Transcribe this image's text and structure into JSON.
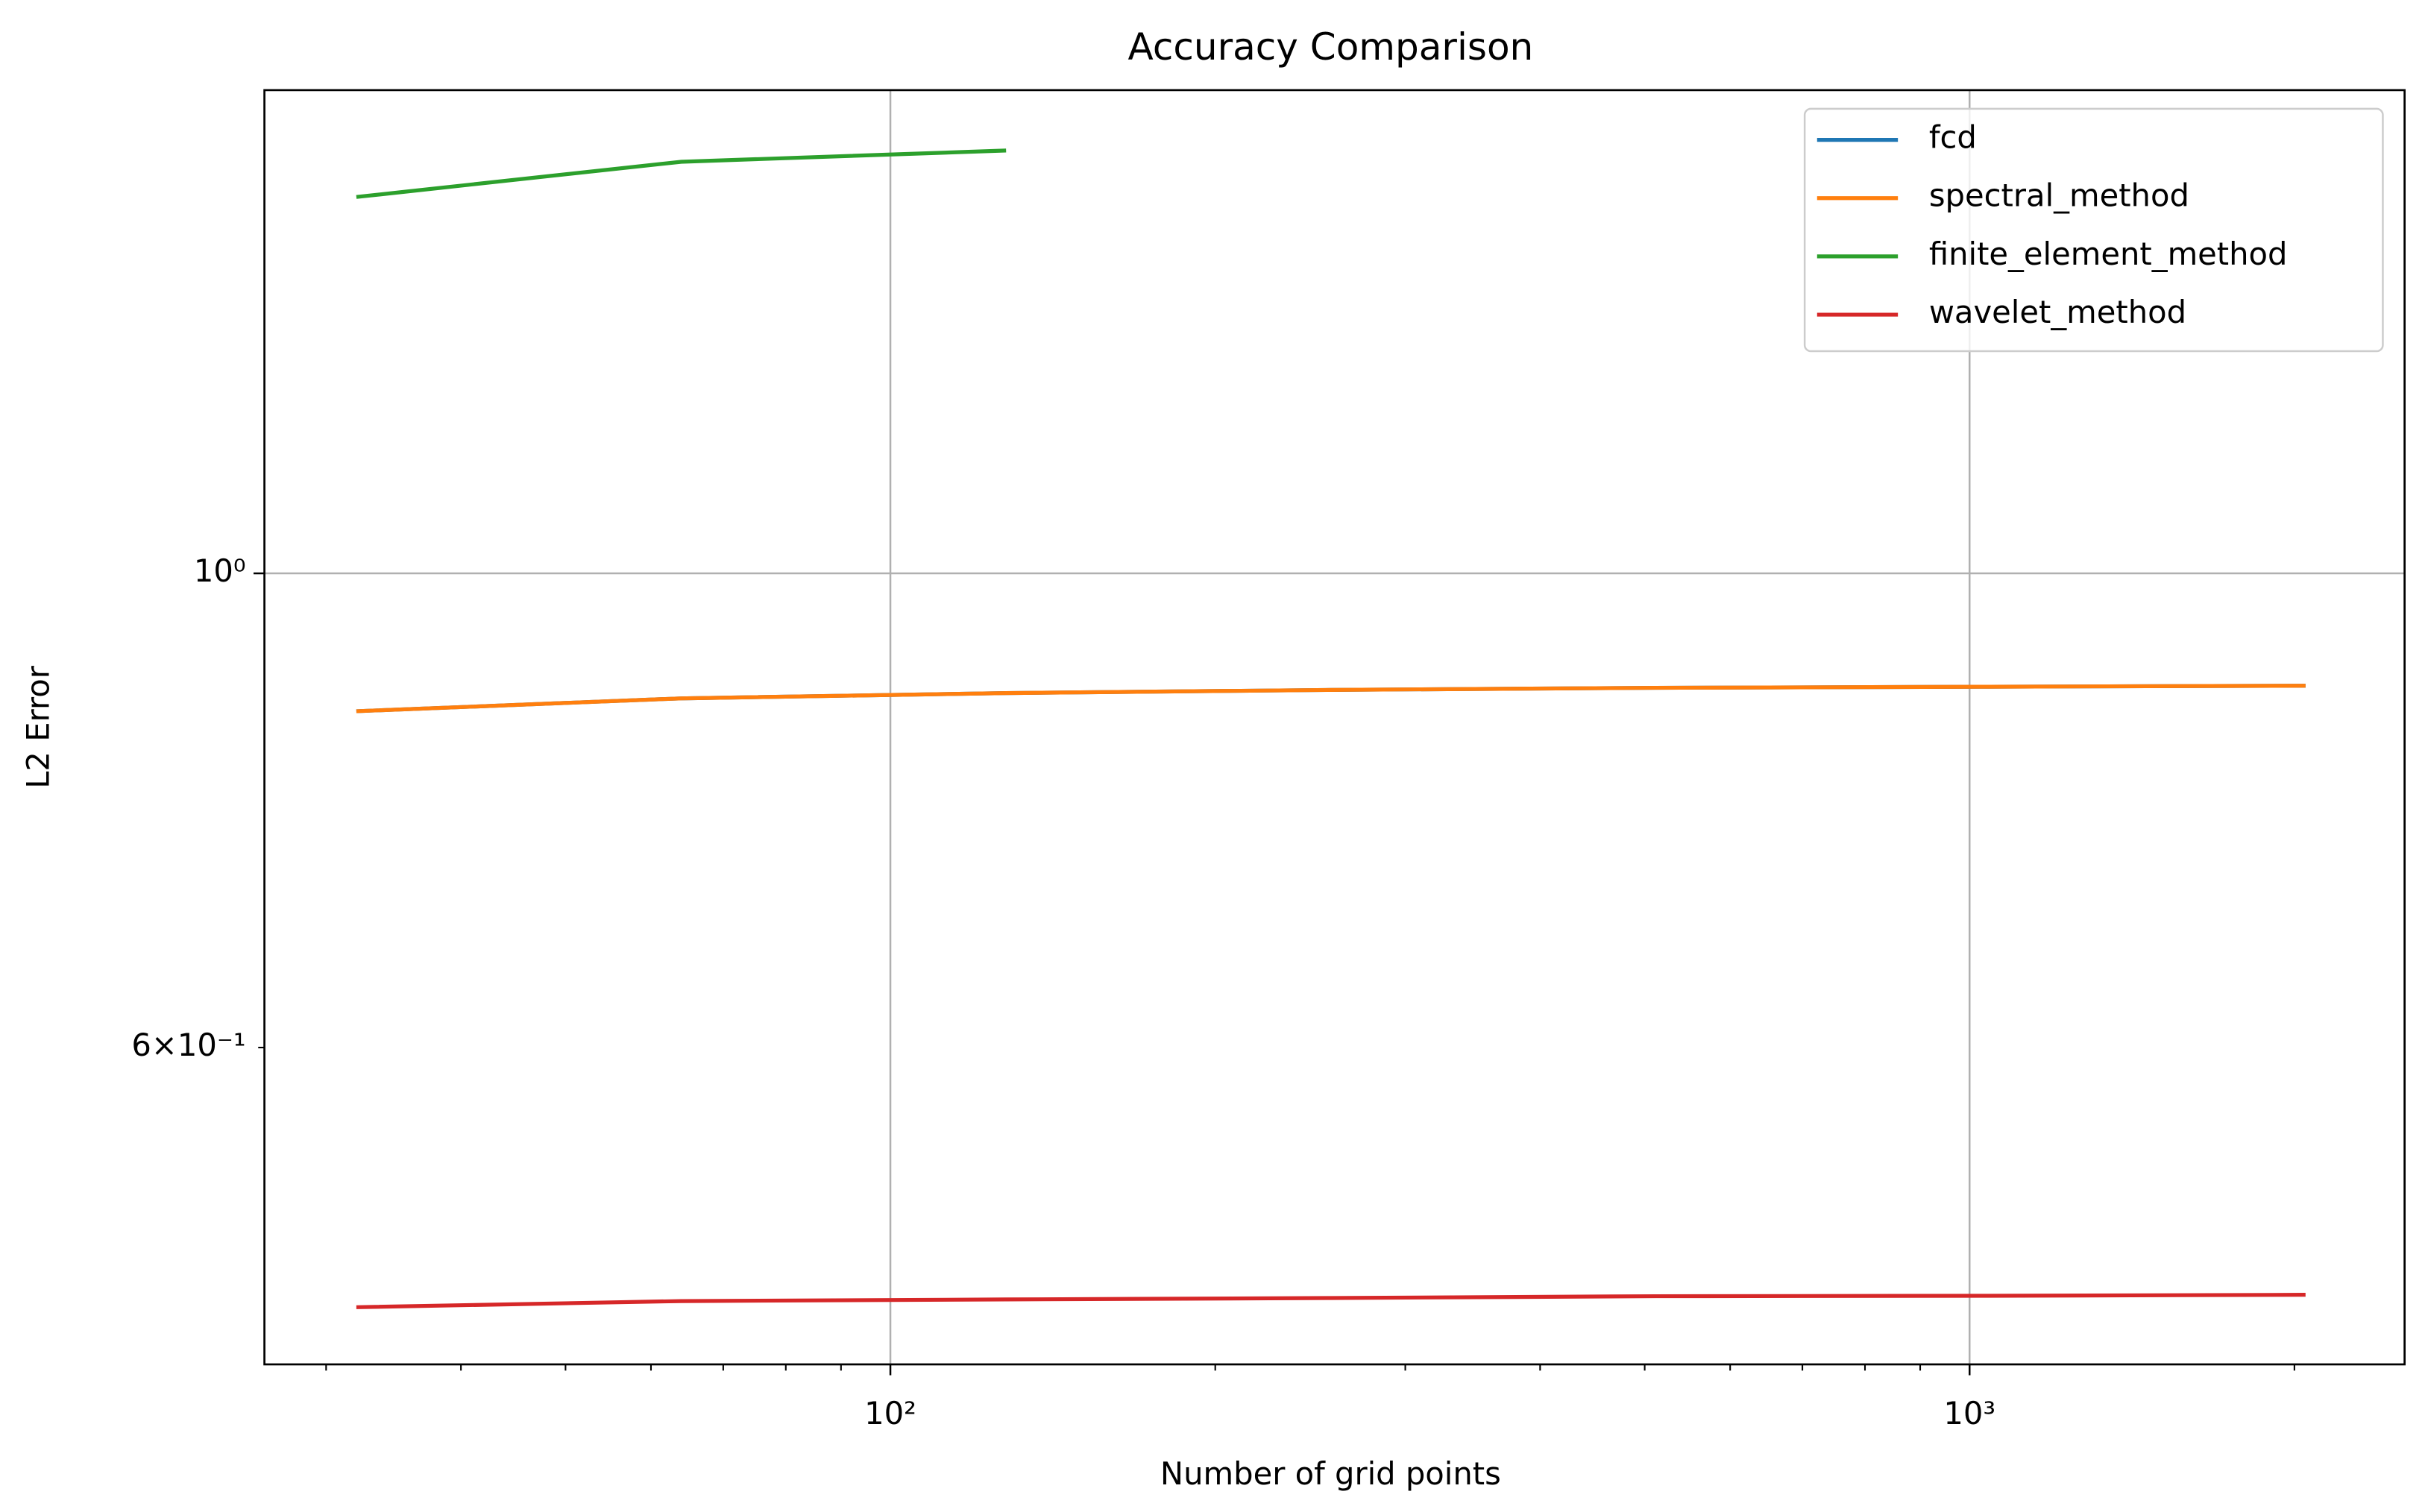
{
  "chart_data": {
    "type": "line",
    "title": "Accuracy Comparison",
    "xlabel": "Number of grid points",
    "ylabel": "L2 Error",
    "x": [
      32,
      64,
      128,
      256,
      512,
      1024,
      2048
    ],
    "series": [
      {
        "name": "fcd",
        "color": "#1f77b4",
        "values": [
          0.862,
          0.874,
          0.879,
          0.882,
          0.884,
          0.885,
          0.886
        ]
      },
      {
        "name": "spectral_method",
        "color": "#ff7f0e",
        "values": [
          0.862,
          0.874,
          0.879,
          0.882,
          0.884,
          0.885,
          0.886
        ]
      },
      {
        "name": "finite_element_method",
        "color": "#2ca02c",
        "values": [
          1.5,
          1.558,
          1.577,
          null,
          null,
          null,
          null
        ]
      },
      {
        "name": "wavelet_method",
        "color": "#d62728",
        "values": [
          0.4536,
          0.4566,
          0.4574,
          0.4581,
          0.459,
          0.4592,
          0.4597
        ]
      }
    ],
    "xscale": "log",
    "yscale": "log",
    "xlim": [
      26.3,
      2530
    ],
    "ylim": [
      0.4265,
      1.683
    ],
    "xticks": [
      {
        "value": 100,
        "label": "10²"
      },
      {
        "value": 1000,
        "label": "10³"
      }
    ],
    "xminorticks": [
      30,
      40,
      50,
      60,
      70,
      80,
      90,
      200,
      300,
      400,
      500,
      600,
      700,
      800,
      900,
      2000
    ],
    "yticks": [
      {
        "value": 1,
        "label": "10⁰"
      }
    ],
    "yminorticks": [
      {
        "value": 0.6,
        "label": "6×10⁻¹"
      }
    ],
    "grid": true,
    "legend": "upper right"
  }
}
